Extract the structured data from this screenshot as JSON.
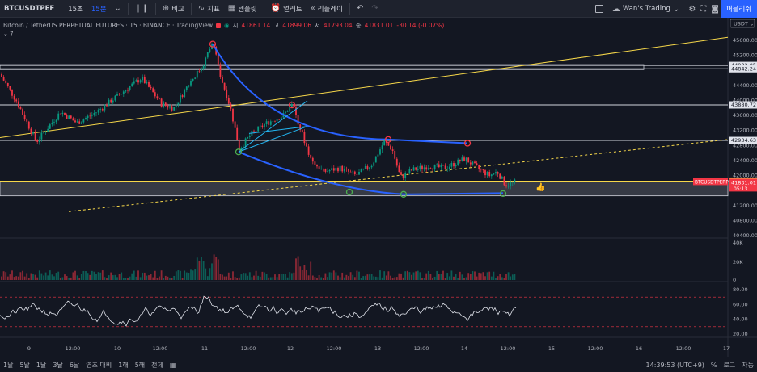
{
  "toolbar": {
    "symbol": "BTCUSDTPEF",
    "intervals": [
      "15초",
      "15분"
    ],
    "compare": "비교",
    "indicators": "지표",
    "templates": "템플릿",
    "alert": "얼러트",
    "replay": "리플레이",
    "layout_name": "Wan's Trading",
    "publish": "퍼블리쉬"
  },
  "legend": {
    "title": "Bitcoin / TetherUS PERPETUAL FUTURES · 15 · BINANCE · TradingView",
    "open_label": "시",
    "open": "41861.14",
    "high_label": "고",
    "high": "41899.06",
    "low_label": "저",
    "low": "41793.04",
    "close_label": "종",
    "close": "41831.01",
    "change": "-30.14 (-0.07%)",
    "sub": "⌄ 7"
  },
  "price_axis": {
    "currency": "USDT",
    "ticks": [
      "45600.00",
      "45200.00",
      "44400.00",
      "44000.00",
      "43600.00",
      "43200.00",
      "42800.00",
      "42400.00",
      "42000.00",
      "41200.00",
      "40800.00",
      "40400.00"
    ],
    "tags": [
      {
        "text": "44932.05",
        "kind": "plain"
      },
      {
        "text": "44842.24",
        "kind": "plain"
      },
      {
        "text": "43880.72",
        "kind": "plain"
      },
      {
        "text": "42934.63",
        "kind": "plain"
      },
      {
        "text": "41851.22",
        "kind": "yellow"
      },
      {
        "text": "BTCUSDTPERP",
        "kind": "red-sym"
      },
      {
        "text": "41831.01",
        "kind": "red"
      },
      {
        "text": "05:13",
        "kind": "red"
      }
    ]
  },
  "volume_axis": {
    "ticks": [
      "40K",
      "20K",
      "0"
    ]
  },
  "rsi_axis": {
    "ticks": [
      "80.00",
      "60.00",
      "40.00",
      "20.00"
    ]
  },
  "time_axis": {
    "ticks": [
      "9",
      "12:00",
      "10",
      "12:00",
      "11",
      "12:00",
      "12",
      "12:00",
      "13",
      "12:00",
      "14",
      "12:00",
      "15",
      "12:00",
      "16",
      "12:00",
      "17"
    ]
  },
  "bottombar": {
    "ranges": [
      "1날",
      "5날",
      "1달",
      "3달",
      "6달",
      "연초 대비",
      "1해",
      "5해",
      "전체"
    ],
    "time": "14:39:53 (UTC+9)",
    "percent": "%",
    "log": "로그",
    "auto": "자동"
  },
  "colors": {
    "bg": "#131722",
    "up": "#089981",
    "down": "#f23645",
    "accent": "#2962ff",
    "yellow": "#f7d84a",
    "arc_blue": "#2962ff",
    "channel_cyan": "#22b5f0"
  }
}
